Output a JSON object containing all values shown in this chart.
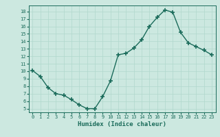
{
  "x": [
    0,
    1,
    2,
    3,
    4,
    5,
    6,
    7,
    8,
    9,
    10,
    11,
    12,
    13,
    14,
    15,
    16,
    17,
    18,
    19,
    20,
    21,
    22,
    23
  ],
  "y": [
    10.1,
    9.3,
    7.8,
    7.0,
    6.8,
    6.2,
    5.5,
    5.0,
    5.0,
    6.6,
    8.7,
    12.2,
    12.4,
    13.1,
    14.2,
    16.0,
    17.2,
    18.2,
    17.9,
    15.2,
    13.8,
    13.3,
    12.8,
    12.2
  ],
  "xlabel": "Humidex (Indice chaleur)",
  "line_color": "#1a6b5a",
  "marker_color": "#1a6b5a",
  "bg_color": "#cce8e0",
  "grid_color": "#b0d8cc",
  "ylim": [
    4.5,
    18.8
  ],
  "xlim": [
    -0.5,
    23.5
  ],
  "yticks": [
    5,
    6,
    7,
    8,
    9,
    10,
    11,
    12,
    13,
    14,
    15,
    16,
    17,
    18
  ],
  "xticks": [
    0,
    1,
    2,
    3,
    4,
    5,
    6,
    7,
    8,
    9,
    10,
    11,
    12,
    13,
    14,
    15,
    16,
    17,
    18,
    19,
    20,
    21,
    22,
    23
  ]
}
